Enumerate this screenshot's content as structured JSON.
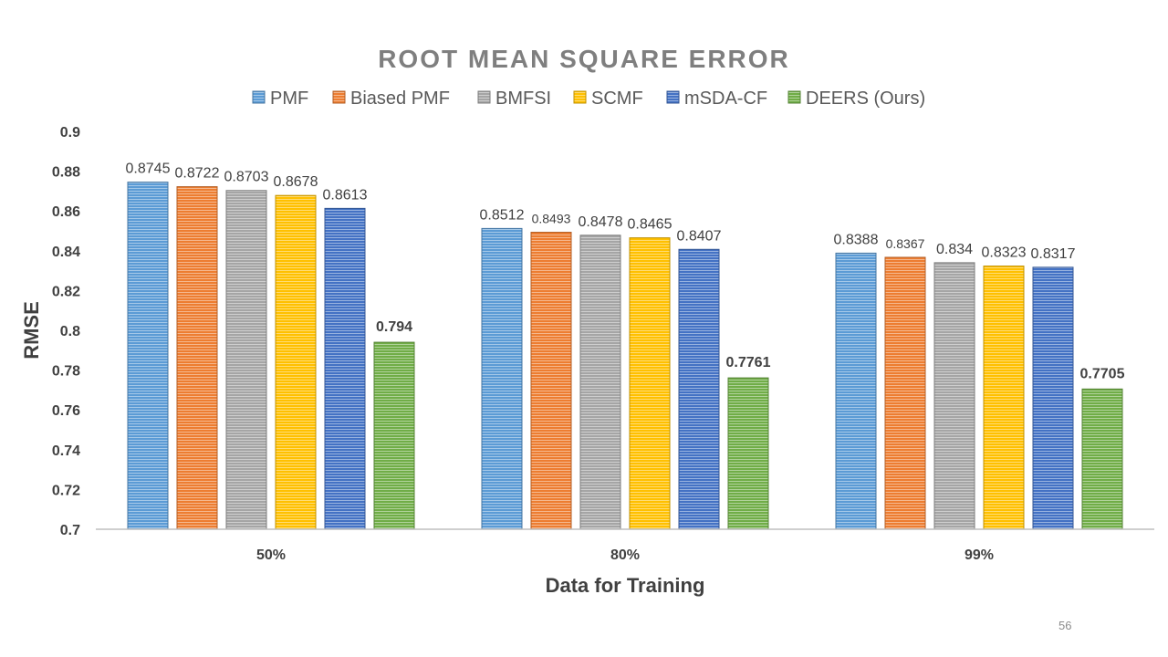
{
  "page_number": "56",
  "chart_data": {
    "type": "bar",
    "title": "ROOT MEAN SQUARE ERROR",
    "xlabel": "Data for Training",
    "ylabel": "RMSE",
    "categories": [
      "50%",
      "80%",
      "99%"
    ],
    "ylim": [
      0.7,
      0.9
    ],
    "yticks": [
      "0.7",
      "0.72",
      "0.74",
      "0.76",
      "0.78",
      "0.8",
      "0.82",
      "0.84",
      "0.86",
      "0.88",
      "0.9"
    ],
    "legend_position": "top",
    "grid": false,
    "series": [
      {
        "name": "PMF",
        "color": "#5b9bd5",
        "values": [
          0.8745,
          0.8512,
          0.8388
        ],
        "labels": [
          "0.8745",
          "0.8512",
          "0.8388"
        ]
      },
      {
        "name": "Biased PMF",
        "color": "#ed7d31",
        "values": [
          0.8722,
          0.8493,
          0.8367
        ],
        "labels": [
          "0.8722",
          "0.8493",
          "0.8367"
        ]
      },
      {
        "name": "BMFSI",
        "color": "#a5a5a5",
        "values": [
          0.8703,
          0.8478,
          0.834
        ],
        "labels": [
          "0.8703",
          "0.8478",
          "0.834"
        ]
      },
      {
        "name": "SCMF",
        "color": "#ffc000",
        "values": [
          0.8678,
          0.8465,
          0.8323
        ],
        "labels": [
          "0.8678",
          "0.8465",
          "0.8323"
        ]
      },
      {
        "name": "mSDA-CF",
        "color": "#4472c4",
        "values": [
          0.8613,
          0.8407,
          0.8317
        ],
        "labels": [
          "0.8613",
          "0.8407",
          "0.8317"
        ]
      },
      {
        "name": "DEERS (Ours)",
        "color": "#70ad47",
        "values": [
          0.794,
          0.7761,
          0.7705
        ],
        "labels": [
          "0.794",
          "0.7761",
          "0.7705"
        ]
      }
    ]
  }
}
